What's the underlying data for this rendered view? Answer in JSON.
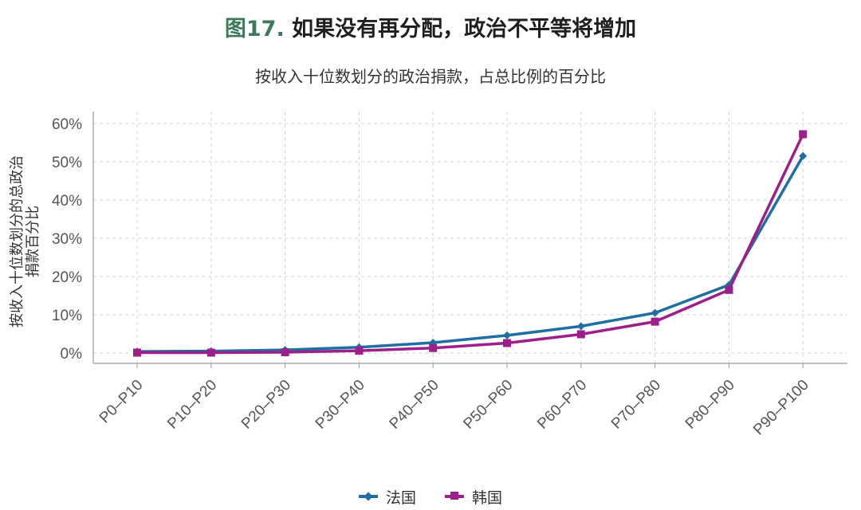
{
  "header": {
    "fig_label": "图17.",
    "title": "如果没有再分配，政治不平等将增加",
    "subtitle": "按收入十位数划分的政治捐款，占总比例的百分比"
  },
  "chart_data": {
    "type": "line",
    "title": "如果没有再分配，政治不平等将增加",
    "subtitle": "按收入十位数划分的政治捐款，占总比例的百分比",
    "ylabel_line1": "按收入十位数划分的总政治",
    "ylabel_line2": "捐款百分比",
    "categories": [
      "P0–P10",
      "P10–P20",
      "P20–P30",
      "P30–P40",
      "P40–P50",
      "P50–P60",
      "P60–P70",
      "P70–P80",
      "P80–P90",
      "P90–P100"
    ],
    "y_ticks": [
      "0%",
      "10%",
      "20%",
      "30%",
      "40%",
      "50%",
      "60%"
    ],
    "ylim": [
      0,
      60
    ],
    "grid": true,
    "legend_position": "bottom",
    "series": [
      {
        "name": "法国",
        "color": "#1f6fa3",
        "marker": "diamond",
        "values": [
          0.4,
          0.5,
          0.8,
          1.5,
          2.7,
          4.6,
          7.0,
          10.5,
          17.8,
          51.5
        ]
      },
      {
        "name": "韩国",
        "color": "#9c1f8a",
        "marker": "square",
        "values": [
          0.1,
          0.1,
          0.2,
          0.6,
          1.3,
          2.6,
          4.9,
          8.2,
          16.5,
          57.2
        ]
      }
    ]
  }
}
